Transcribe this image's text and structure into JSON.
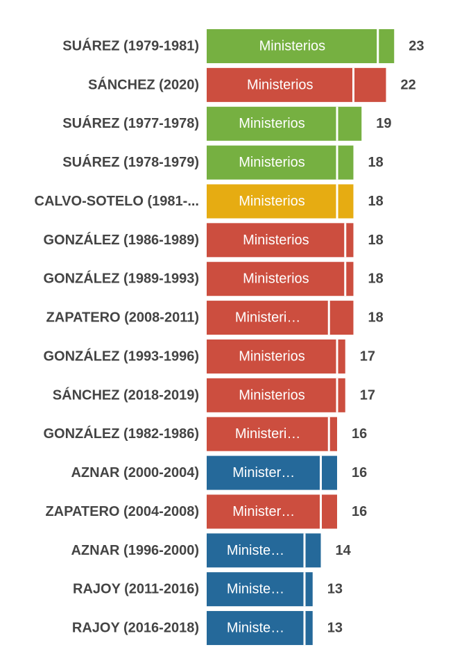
{
  "chart_data": {
    "type": "bar",
    "orientation": "horizontal",
    "stacked": true,
    "grid": false,
    "title": "",
    "xlabel": "",
    "ylabel": "",
    "xlim": [
      0,
      23
    ],
    "segment_label": "Ministerios",
    "colors": {
      "green": "#76b041",
      "red": "#cc4e3f",
      "yellow": "#e6ac12",
      "blue": "#25699a",
      "label": "#444444",
      "segment_text": "#ffffff",
      "divider": "#ffffff"
    },
    "bars": [
      {
        "label": "SUÁREZ (1979-1981)",
        "ministerios": 21,
        "resto": 2,
        "total": "23",
        "color": "green",
        "segment_text": "Ministerios"
      },
      {
        "label": "SÁNCHEZ (2020)",
        "ministerios": 18,
        "resto": 4,
        "total": "22",
        "color": "red",
        "segment_text": "Ministerios"
      },
      {
        "label": "SUÁREZ (1977-1978)",
        "ministerios": 16,
        "resto": 3,
        "total": "19",
        "color": "green",
        "segment_text": "Ministerios"
      },
      {
        "label": "SUÁREZ (1978-1979)",
        "ministerios": 16,
        "resto": 2,
        "total": "18",
        "color": "green",
        "segment_text": "Ministerios"
      },
      {
        "label": "CALVO-SOTELO (1981-...",
        "ministerios": 16,
        "resto": 2,
        "total": "18",
        "color": "yellow",
        "segment_text": "Ministerios"
      },
      {
        "label": "GONZÁLEZ (1986-1989)",
        "ministerios": 17,
        "resto": 1,
        "total": "18",
        "color": "red",
        "segment_text": "Ministerios"
      },
      {
        "label": "GONZÁLEZ (1989-1993)",
        "ministerios": 17,
        "resto": 1,
        "total": "18",
        "color": "red",
        "segment_text": "Ministerios"
      },
      {
        "label": "ZAPATERO (2008-2011)",
        "ministerios": 15,
        "resto": 3,
        "total": "18",
        "color": "red",
        "segment_text": "Ministeri…"
      },
      {
        "label": "GONZÁLEZ (1993-1996)",
        "ministerios": 16,
        "resto": 1,
        "total": "17",
        "color": "red",
        "segment_text": "Ministerios"
      },
      {
        "label": "SÁNCHEZ (2018-2019)",
        "ministerios": 16,
        "resto": 1,
        "total": "17",
        "color": "red",
        "segment_text": "Ministerios"
      },
      {
        "label": "GONZÁLEZ (1982-1986)",
        "ministerios": 15,
        "resto": 1,
        "total": "16",
        "color": "red",
        "segment_text": "Ministeri…"
      },
      {
        "label": "AZNAR (2000-2004)",
        "ministerios": 14,
        "resto": 2,
        "total": "16",
        "color": "blue",
        "segment_text": "Minister…"
      },
      {
        "label": "ZAPATERO (2004-2008)",
        "ministerios": 14,
        "resto": 2,
        "total": "16",
        "color": "red",
        "segment_text": "Minister…"
      },
      {
        "label": "AZNAR (1996-2000)",
        "ministerios": 12,
        "resto": 2,
        "total": "14",
        "color": "blue",
        "segment_text": "Ministe…"
      },
      {
        "label": "RAJOY (2011-2016)",
        "ministerios": 12,
        "resto": 1,
        "total": "13",
        "color": "blue",
        "segment_text": "Ministe…"
      },
      {
        "label": "RAJOY (2016-2018)",
        "ministerios": 12,
        "resto": 1,
        "total": "13",
        "color": "blue",
        "segment_text": "Ministe…"
      }
    ]
  }
}
